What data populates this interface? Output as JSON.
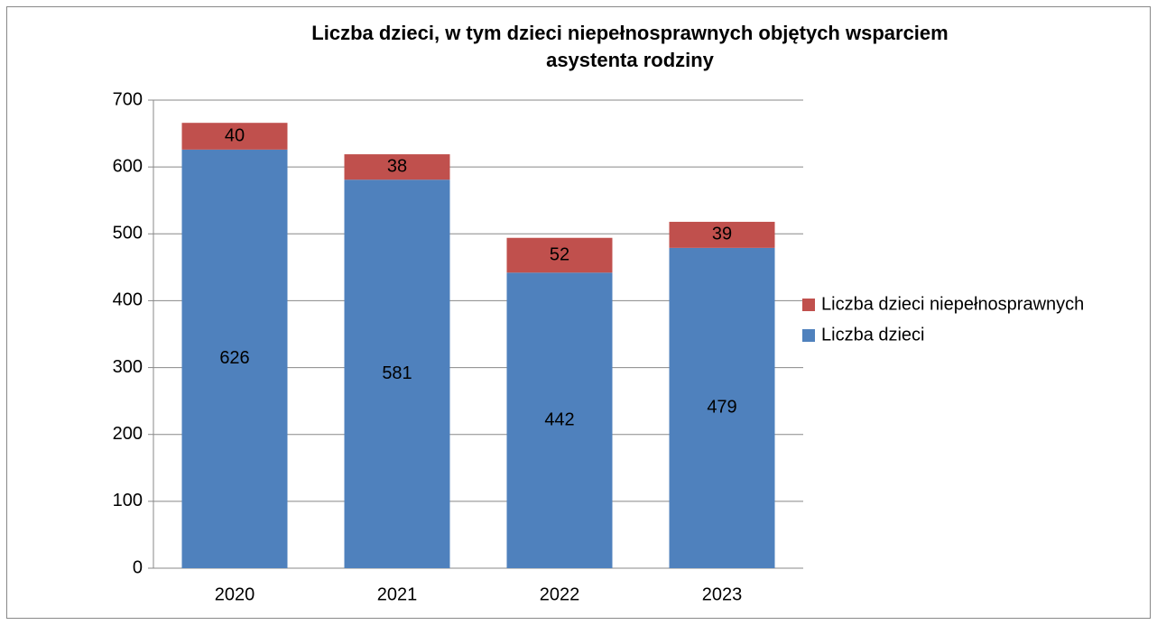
{
  "chart_data": {
    "type": "stacked_bar",
    "title": [
      "Liczba dzieci, w tym dzieci niepełnosprawnych objętych wsparciem",
      "asystenta rodziny"
    ],
    "categories": [
      "2020",
      "2021",
      "2022",
      "2023"
    ],
    "series": [
      {
        "name": "Liczba dzieci",
        "color": "#4f81bd",
        "values": [
          626,
          581,
          442,
          479
        ]
      },
      {
        "name": "Liczba dzieci niepełnosprawnych",
        "color": "#c0504d",
        "values": [
          40,
          38,
          52,
          39
        ]
      }
    ],
    "ylim": [
      0,
      700
    ],
    "yticks": [
      0,
      100,
      200,
      300,
      400,
      500,
      600,
      700
    ],
    "grid": true,
    "legend": "right"
  }
}
